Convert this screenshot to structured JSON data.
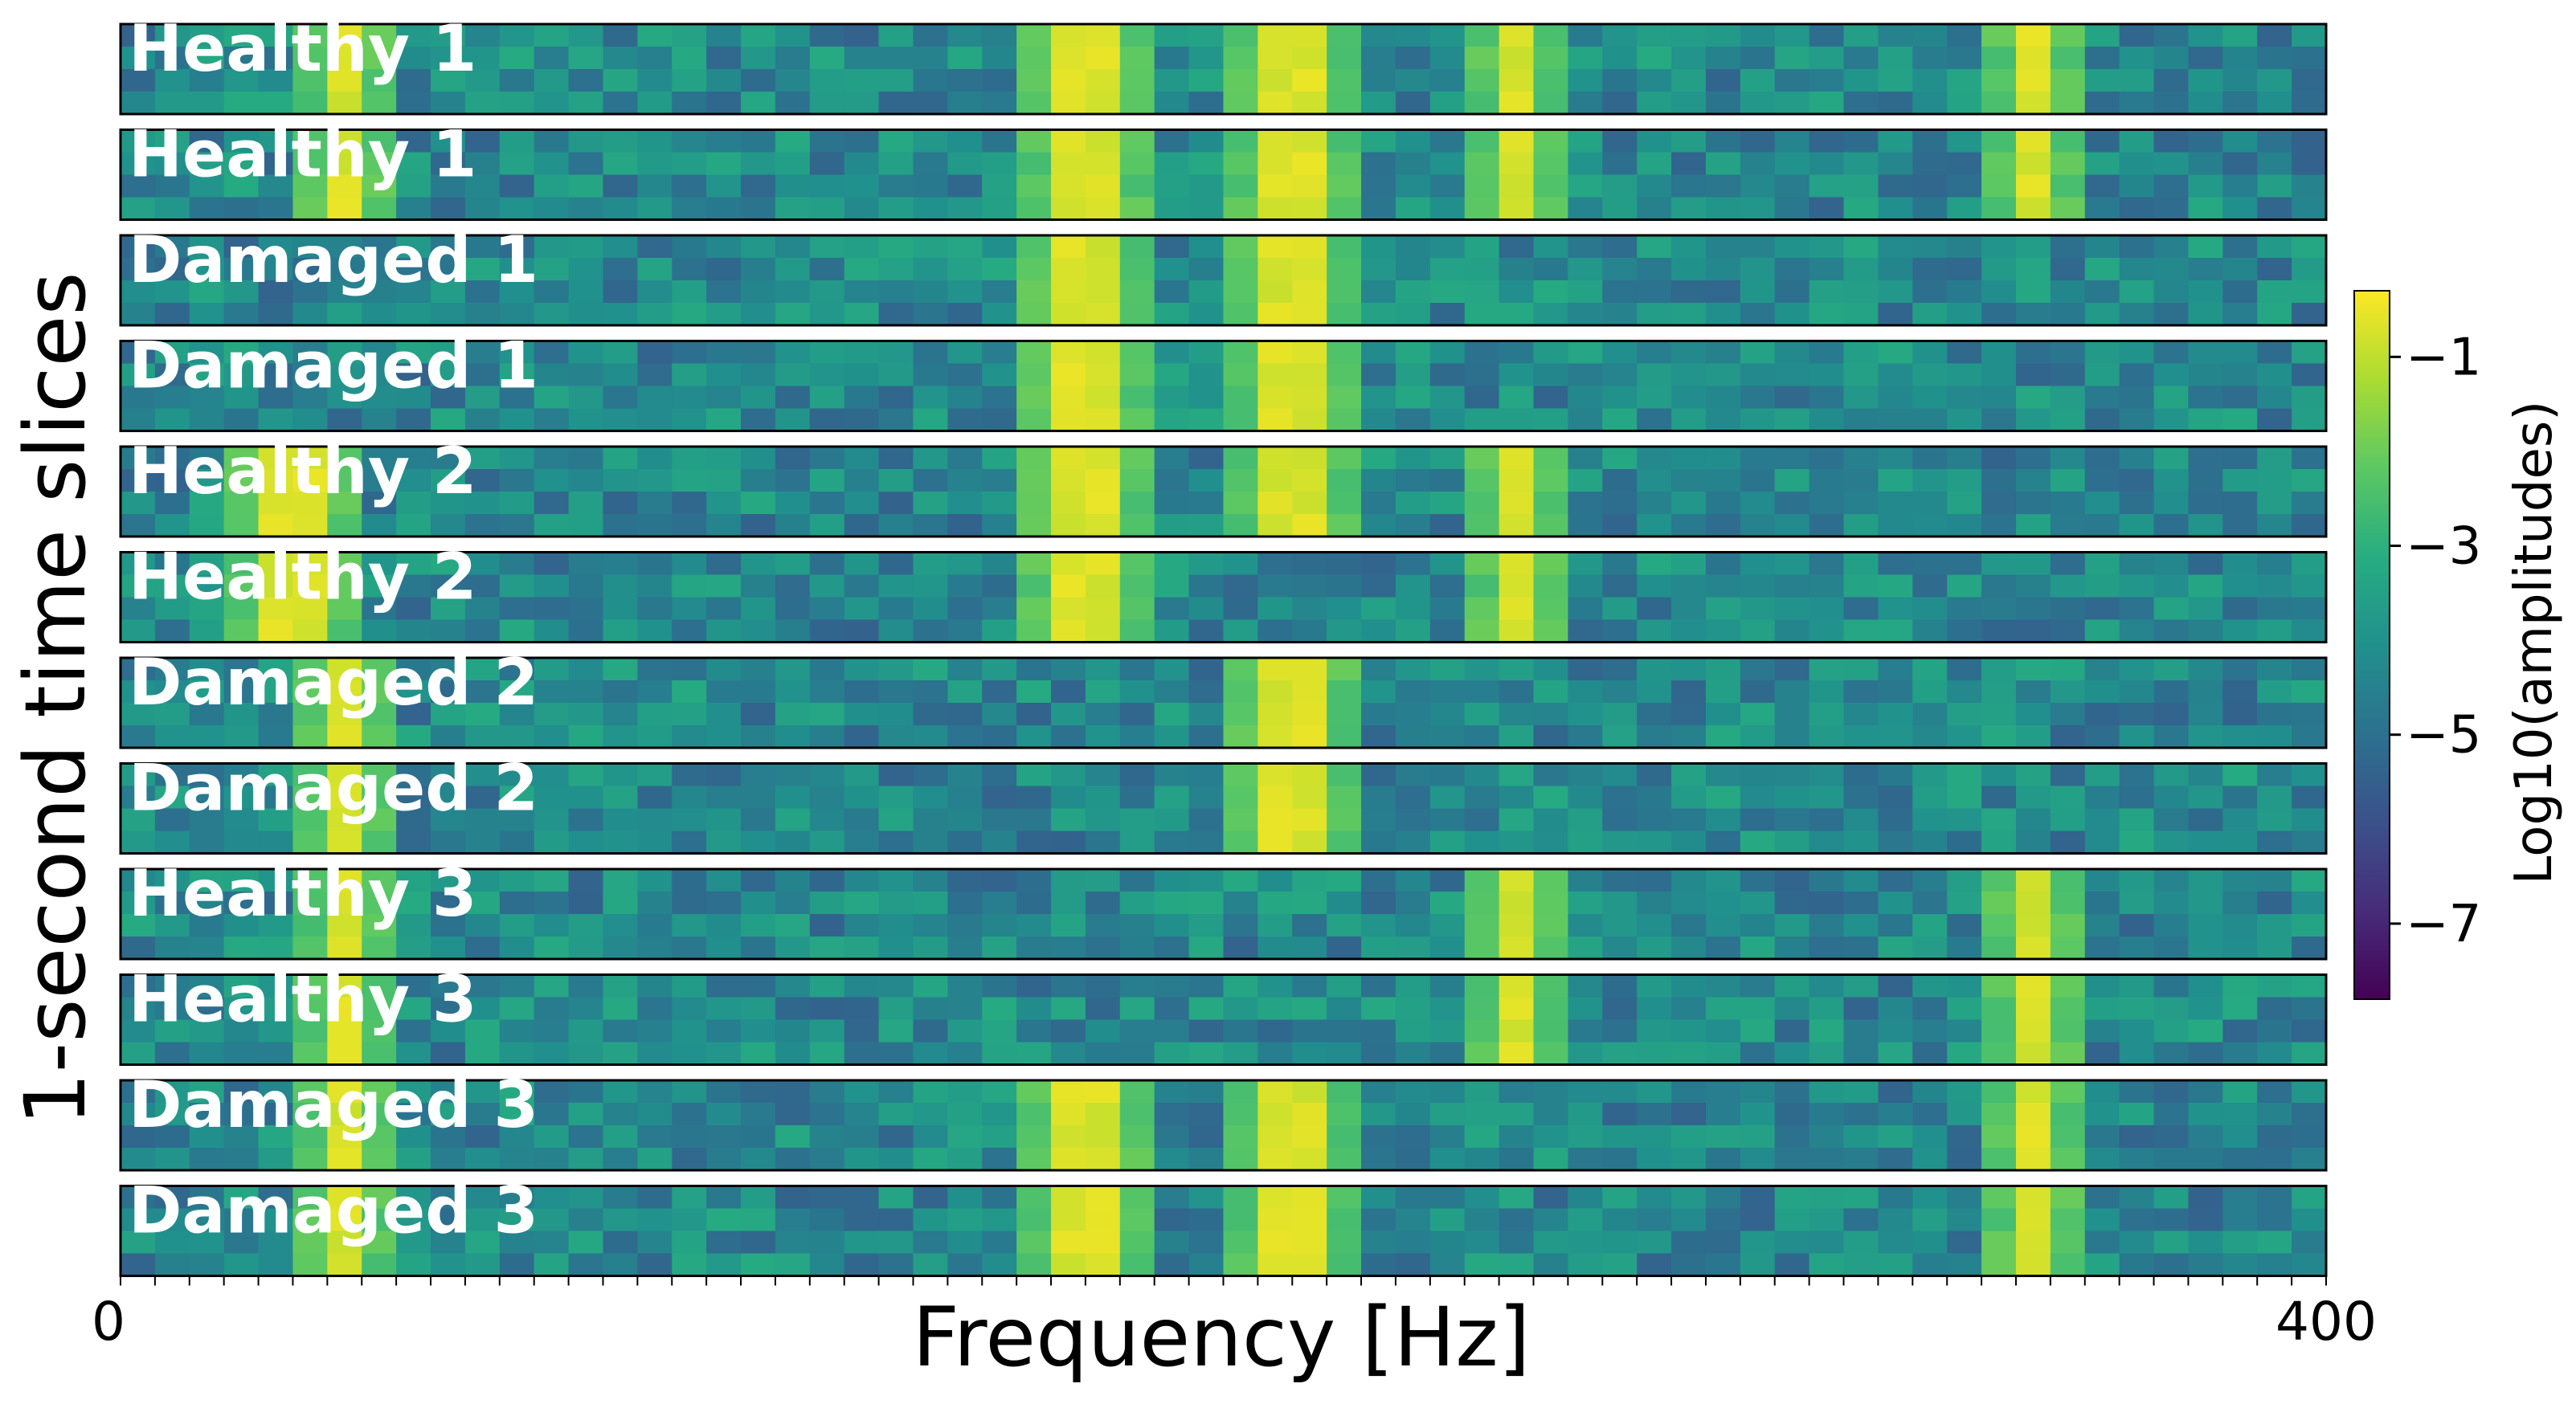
{
  "chart_data": {
    "type": "heatmap",
    "ylabel": "1-second time slices",
    "xlabel": "Frequency [Hz]",
    "xlim": [
      0,
      400
    ],
    "x_tick_labels": [
      "0",
      "400"
    ],
    "colorbar": {
      "label": "Log10(amplitudes)",
      "range": [
        -7.8,
        -0.3
      ],
      "ticks": [
        -1,
        -3,
        -5,
        -7
      ],
      "tick_labels": [
        "−1",
        "−3",
        "−5",
        "−7"
      ],
      "colormap": "viridis"
    },
    "rows": [
      {
        "label": "Healthy 1",
        "peaks_hz": [
          40,
          175,
          212,
          255,
          347
        ]
      },
      {
        "label": "Healthy 1",
        "peaks_hz": [
          40,
          175,
          212,
          255,
          347
        ]
      },
      {
        "label": "Damaged 1",
        "peaks_hz": [
          175,
          212
        ]
      },
      {
        "label": "Damaged 1",
        "peaks_hz": [
          175,
          212
        ]
      },
      {
        "label": "Healthy 2",
        "peaks_hz": [
          31,
          175,
          212,
          255
        ]
      },
      {
        "label": "Healthy 2",
        "peaks_hz": [
          31,
          175,
          255
        ]
      },
      {
        "label": "Damaged 2",
        "peaks_hz": [
          40,
          212
        ]
      },
      {
        "label": "Damaged 2",
        "peaks_hz": [
          40,
          212
        ]
      },
      {
        "label": "Healthy 3",
        "peaks_hz": [
          40,
          255,
          347
        ]
      },
      {
        "label": "Healthy 3",
        "peaks_hz": [
          40,
          255,
          347
        ]
      },
      {
        "label": "Damaged 3",
        "peaks_hz": [
          40,
          175,
          212,
          347
        ]
      },
      {
        "label": "Damaged 3",
        "peaks_hz": [
          40,
          175,
          212,
          347
        ]
      }
    ]
  }
}
